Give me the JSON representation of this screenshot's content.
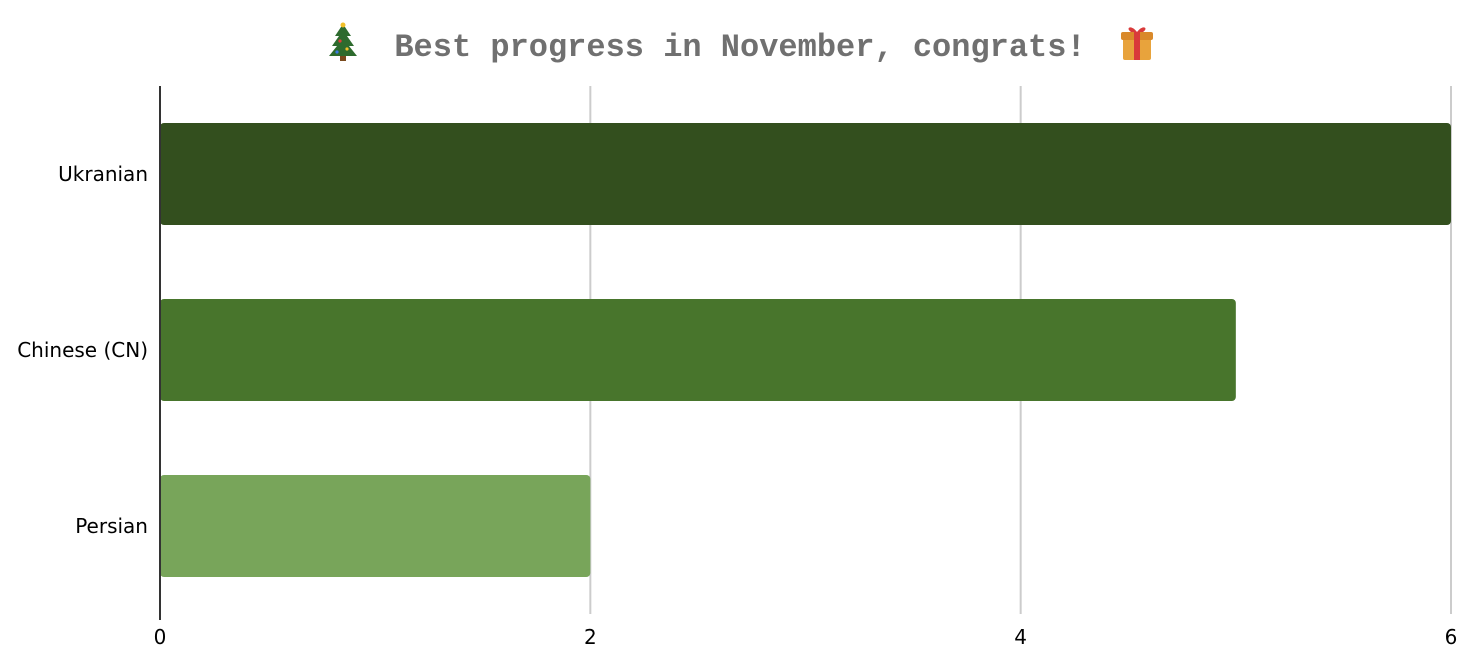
{
  "chart_data": {
    "type": "bar",
    "orientation": "horizontal",
    "title": "Best progress in November, congrats!",
    "title_decorations": [
      "christmas-tree-icon",
      "gift-icon"
    ],
    "categories": [
      "Ukranian",
      "Chinese (CN)",
      "Persian"
    ],
    "values": [
      6,
      5,
      2
    ],
    "colors": [
      "#334f1e",
      "#48752c",
      "#78a55a"
    ],
    "xlabel": "",
    "ylabel": "",
    "xlim": [
      0,
      6
    ],
    "x_ticks": [
      "0",
      "2",
      "4",
      "6"
    ],
    "grid": "vertical",
    "gridline_color": "#cccccc",
    "title_color": "#707070",
    "legend": "none"
  }
}
